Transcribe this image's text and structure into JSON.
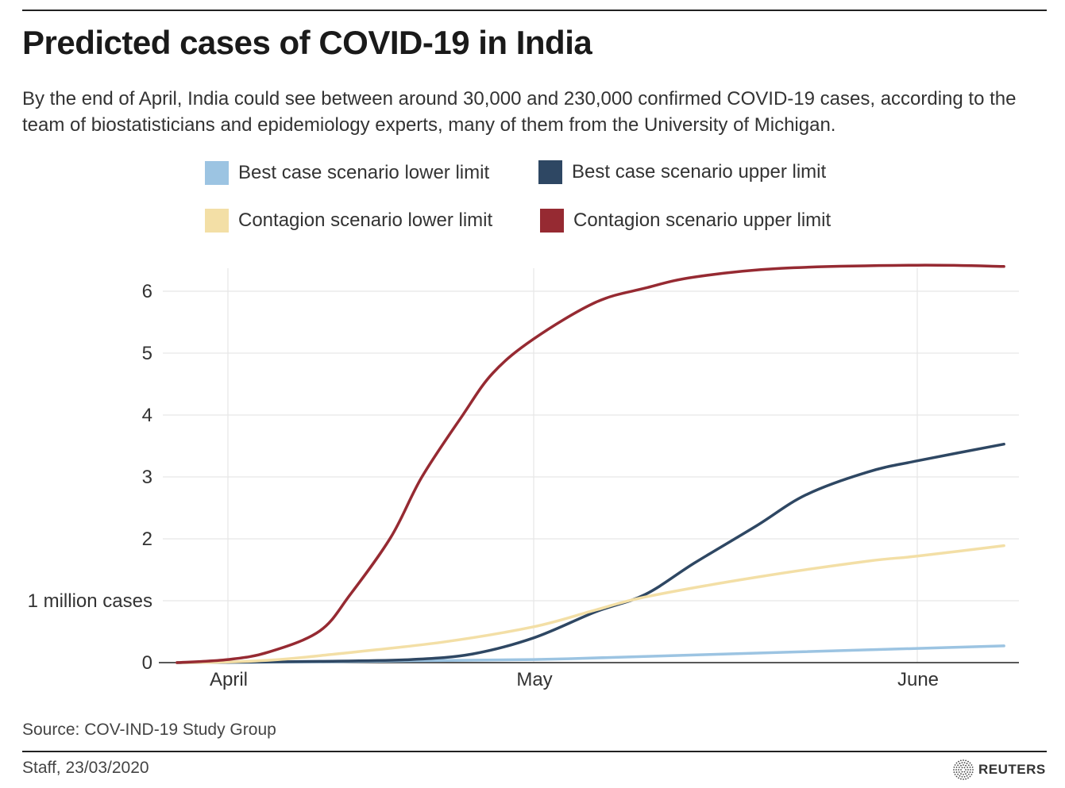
{
  "title": "Predicted cases of COVID-19 in India",
  "subtitle": "By the end of April, India could see between around 30,000 and 230,000 confirmed COVID-19 cases, according to the team of biostatisticians and epidemiology experts, many of them from the University of Michigan.",
  "source": "Source: COV-IND-19 Study Group",
  "credit": "Staff, 23/03/2020",
  "logo_text": "REUTERS",
  "chart_data": {
    "type": "line",
    "title": "Predicted cases of COVID-19 in India",
    "xlabel": "",
    "ylabel": "1 million cases",
    "x_ticks": [
      {
        "date": "2020-04-01",
        "label": "April"
      },
      {
        "date": "2020-05-01",
        "label": "May"
      },
      {
        "date": "2020-06-01",
        "label": "June"
      }
    ],
    "y_ticks": [
      {
        "value": 0,
        "label": "0"
      },
      {
        "value": 1,
        "label": "1 million cases"
      },
      {
        "value": 2,
        "label": "2"
      },
      {
        "value": 3,
        "label": "3"
      },
      {
        "value": 4,
        "label": "4"
      },
      {
        "value": 5,
        "label": "5"
      },
      {
        "value": 6,
        "label": "6"
      }
    ],
    "ylim": [
      0,
      6.4
    ],
    "xlim": [
      "2020-03-27",
      "2020-06-08"
    ],
    "grid": true,
    "legend_position": "top",
    "series": [
      {
        "name": "Best case scenario lower limit",
        "color": "#9cc4e2",
        "x": [
          "2020-03-27",
          "2020-04-01",
          "2020-04-15",
          "2020-05-01",
          "2020-05-15",
          "2020-06-01",
          "2020-06-08"
        ],
        "values": [
          0,
          0.003,
          0.02,
          0.05,
          0.13,
          0.23,
          0.27
        ]
      },
      {
        "name": "Best case scenario upper limit",
        "color": "#2e4763",
        "x": [
          "2020-03-27",
          "2020-04-01",
          "2020-04-10",
          "2020-04-19",
          "2020-04-25",
          "2020-05-01",
          "2020-05-06",
          "2020-05-10",
          "2020-05-14",
          "2020-05-19",
          "2020-05-23",
          "2020-05-28",
          "2020-06-01",
          "2020-06-08"
        ],
        "values": [
          0,
          0.005,
          0.02,
          0.05,
          0.14,
          0.4,
          0.82,
          1.1,
          1.61,
          2.21,
          2.71,
          3.08,
          3.26,
          3.53
        ]
      },
      {
        "name": "Contagion scenario lower limit",
        "color": "#f3dfa6",
        "x": [
          "2020-03-27",
          "2020-04-01",
          "2020-04-06",
          "2020-04-11",
          "2020-04-22",
          "2020-05-01",
          "2020-05-06",
          "2020-05-10",
          "2020-05-19",
          "2020-05-28",
          "2020-06-01",
          "2020-06-08"
        ],
        "values": [
          0,
          0.01,
          0.05,
          0.13,
          0.33,
          0.58,
          0.85,
          1.06,
          1.38,
          1.64,
          1.72,
          1.89
        ]
      },
      {
        "name": "Contagion scenario upper limit",
        "color": "#962a32",
        "x": [
          "2020-03-27",
          "2020-04-01",
          "2020-04-05",
          "2020-04-10",
          "2020-04-13",
          "2020-04-17",
          "2020-04-20",
          "2020-04-24",
          "2020-04-27",
          "2020-05-01",
          "2020-05-06",
          "2020-05-10",
          "2020-05-14",
          "2020-05-21",
          "2020-06-01",
          "2020-06-08"
        ],
        "values": [
          0,
          0.05,
          0.17,
          0.51,
          1.1,
          2.03,
          2.99,
          3.99,
          4.68,
          5.23,
          5.82,
          6.05,
          6.23,
          6.37,
          6.42,
          6.4
        ]
      }
    ]
  }
}
